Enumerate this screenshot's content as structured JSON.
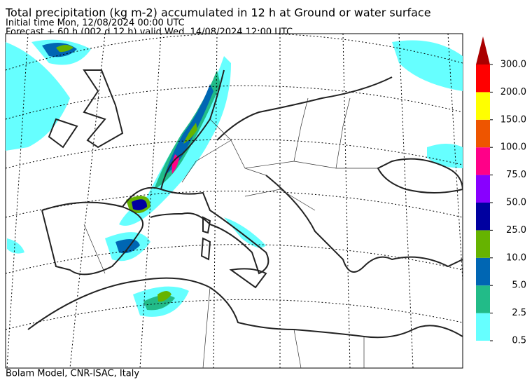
{
  "header": {
    "title": "Total precipitation (kg m-2) accumulated in  12 h at Ground or water surface",
    "initial_time": "Initial time  Mon, 12/08/2024  00:00 UTC",
    "forecast": "Forecast  +  60 h  (002 d 12 h)  valid Wed, 14/08/2024 12:00 UTC"
  },
  "colorbar": {
    "levels": [
      {
        "value": 0.5,
        "label": "0.5"
      },
      {
        "value": 2.5,
        "label": "2.5"
      },
      {
        "value": 5,
        "label": "5.0"
      },
      {
        "value": 10,
        "label": "10.0"
      },
      {
        "value": 25,
        "label": "25.0"
      },
      {
        "value": 50,
        "label": "50.0"
      },
      {
        "value": 75,
        "label": "75.0"
      },
      {
        "value": 100,
        "label": "100.0"
      },
      {
        "value": 150,
        "label": "150.0"
      },
      {
        "value": 200,
        "label": "200.0"
      },
      {
        "value": 300,
        "label": "300.0"
      }
    ],
    "colors": [
      "#66ffff",
      "#22bb88",
      "#0066b3",
      "#66b300",
      "#0000a0",
      "#8800ff",
      "#ff0088",
      "#ee5500",
      "#ffff00",
      "#ff0000",
      "#aa0000"
    ]
  },
  "footer": {
    "credit": "Bolam Model, CNR-ISAC, Italy"
  }
}
